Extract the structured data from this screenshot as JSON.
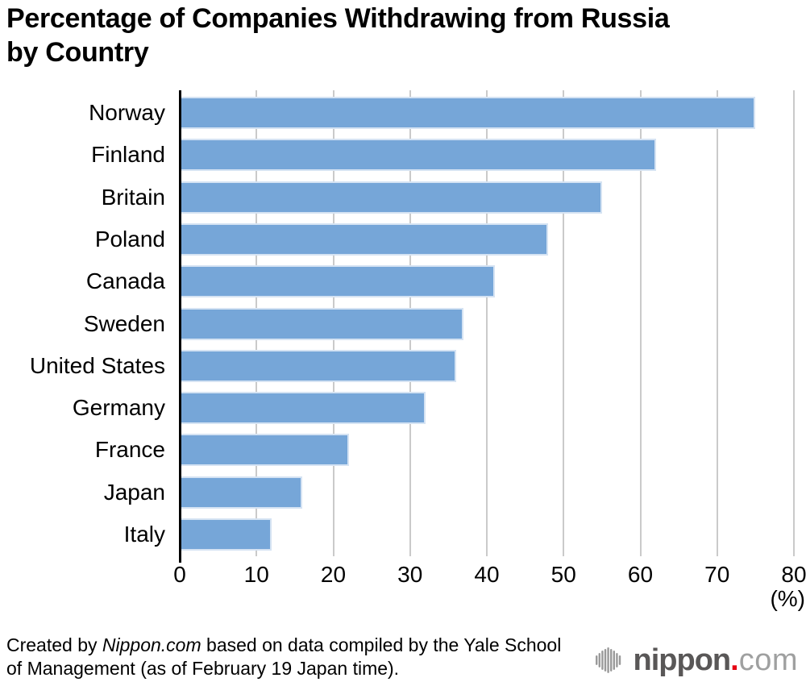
{
  "title_lines": [
    "Percentage of Companies Withdrawing from Russia",
    "by Country"
  ],
  "chart_data": {
    "type": "bar",
    "orientation": "horizontal",
    "title": "Percentage of Companies Withdrawing from Russia by Country",
    "categories": [
      "Norway",
      "Finland",
      "Britain",
      "Poland",
      "Canada",
      "Sweden",
      "United States",
      "Germany",
      "France",
      "Japan",
      "Italy"
    ],
    "values": [
      75,
      62,
      55,
      48,
      41,
      37,
      36,
      32,
      22,
      16,
      12
    ],
    "xlim": [
      0,
      80
    ],
    "xticks": [
      0,
      10,
      20,
      30,
      40,
      50,
      60,
      70,
      80
    ],
    "xlabel": "(%)",
    "ylabel": "",
    "grid": "vertical",
    "legend": "none",
    "bar_color": "#76a6d8",
    "bar_border_color": "#d5e3f3",
    "gridline_color": "#cacaca",
    "axis_color": "#000000"
  },
  "footer": {
    "credit_prefix": "Created by ",
    "credit_source": "Nippon.com",
    "credit_suffix": " based on data compiled by the Yale School of Management (as of February 19 Japan time)."
  },
  "logo": {
    "name_bold": "nippon",
    "dot": ".",
    "name_light": "com",
    "icon": "waveform-bars-icon",
    "color_dark": "#595757",
    "color_red": "#e60012",
    "color_light": "#9fa0a0",
    "icon_color": "#9a9a9a"
  }
}
